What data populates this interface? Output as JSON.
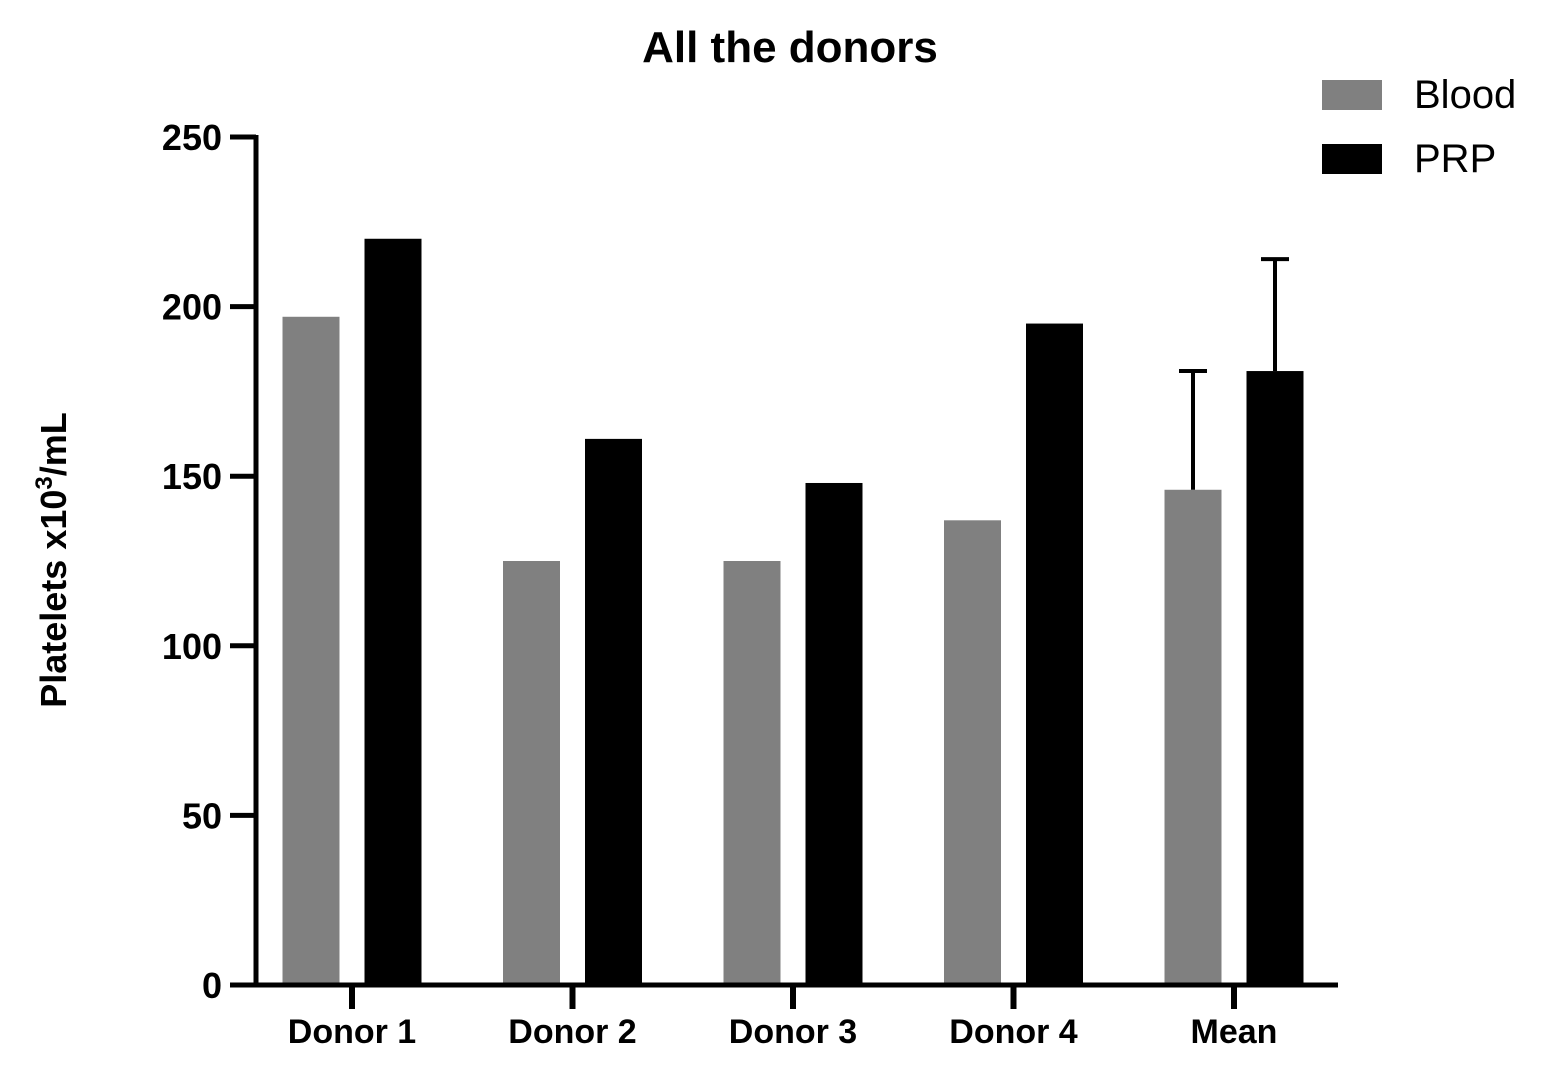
{
  "chart_data": {
    "type": "bar",
    "title": "All the donors",
    "xlabel": "",
    "ylabel": "Platelets x10",
    "ylabel_superscript": "3",
    "ylabel_suffix": "/mL",
    "ylim": [
      0,
      250
    ],
    "yticks": [
      "0",
      "50",
      "100",
      "150",
      "200",
      "250"
    ],
    "categories": [
      "Donor 1",
      "Donor 2",
      "Donor 3",
      "Donor 4",
      "Mean"
    ],
    "series": [
      {
        "name": "Blood",
        "color": "#808080",
        "values": [
          197,
          125,
          125,
          137,
          146
        ],
        "error_upper": [
          null,
          null,
          null,
          null,
          181
        ]
      },
      {
        "name": "PRP",
        "color": "#000000",
        "values": [
          220,
          161,
          148,
          195,
          181
        ],
        "error_upper": [
          null,
          null,
          null,
          null,
          214
        ]
      }
    ],
    "legend": "top-right",
    "grid": false
  }
}
